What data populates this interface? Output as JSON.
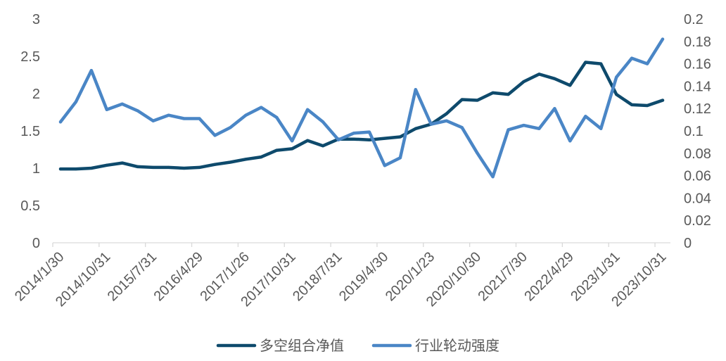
{
  "chart_data": {
    "type": "line",
    "categories": [
      "2014/1/30",
      "",
      "",
      "2014/10/31",
      "",
      "",
      "2015/7/31",
      "",
      "",
      "2016/4/29",
      "",
      "",
      "2017/1/26",
      "",
      "",
      "2017/10/31",
      "",
      "",
      "2018/7/31",
      "",
      "",
      "2019/4/30",
      "",
      "",
      "2020/1/23",
      "",
      "",
      "2020/10/30",
      "",
      "",
      "2021/7/30",
      "",
      "",
      "2022/4/29",
      "",
      "",
      "2023/1/31",
      "",
      "",
      "2023/10/31"
    ],
    "series": [
      {
        "name": "多空组合净值",
        "axis": "left",
        "color": "#0E4A6C",
        "values": [
          0.99,
          0.99,
          1.0,
          1.04,
          1.07,
          1.02,
          1.01,
          1.01,
          1.0,
          1.01,
          1.05,
          1.08,
          1.12,
          1.15,
          1.24,
          1.26,
          1.37,
          1.3,
          1.39,
          1.39,
          1.38,
          1.4,
          1.42,
          1.53,
          1.59,
          1.73,
          1.92,
          1.91,
          2.01,
          1.99,
          2.16,
          2.26,
          2.2,
          2.11,
          2.42,
          2.4,
          1.99,
          1.85,
          1.84,
          1.91
        ]
      },
      {
        "name": "行业轮动强度",
        "axis": "right",
        "color": "#4A86C6",
        "values": [
          0.108,
          0.126,
          0.154,
          0.119,
          0.124,
          0.118,
          0.109,
          0.114,
          0.111,
          0.111,
          0.096,
          0.103,
          0.114,
          0.121,
          0.112,
          0.091,
          0.119,
          0.108,
          0.092,
          0.098,
          0.099,
          0.069,
          0.076,
          0.137,
          0.106,
          0.109,
          0.103,
          0.08,
          0.059,
          0.101,
          0.105,
          0.102,
          0.12,
          0.091,
          0.113,
          0.102,
          0.148,
          0.165,
          0.16,
          0.182
        ]
      }
    ],
    "y_left": {
      "min": 0,
      "max": 3,
      "tick_labels": [
        "0",
        "0.5",
        "1",
        "1.5",
        "2",
        "2.5",
        "3"
      ]
    },
    "y_right": {
      "min": 0,
      "max": 0.2,
      "tick_labels": [
        "0",
        "0.02",
        "0.04",
        "0.06",
        "0.08",
        "0.1",
        "0.12",
        "0.14",
        "0.16",
        "0.18",
        "0.2"
      ]
    },
    "grid": false,
    "legend": "bottom"
  }
}
